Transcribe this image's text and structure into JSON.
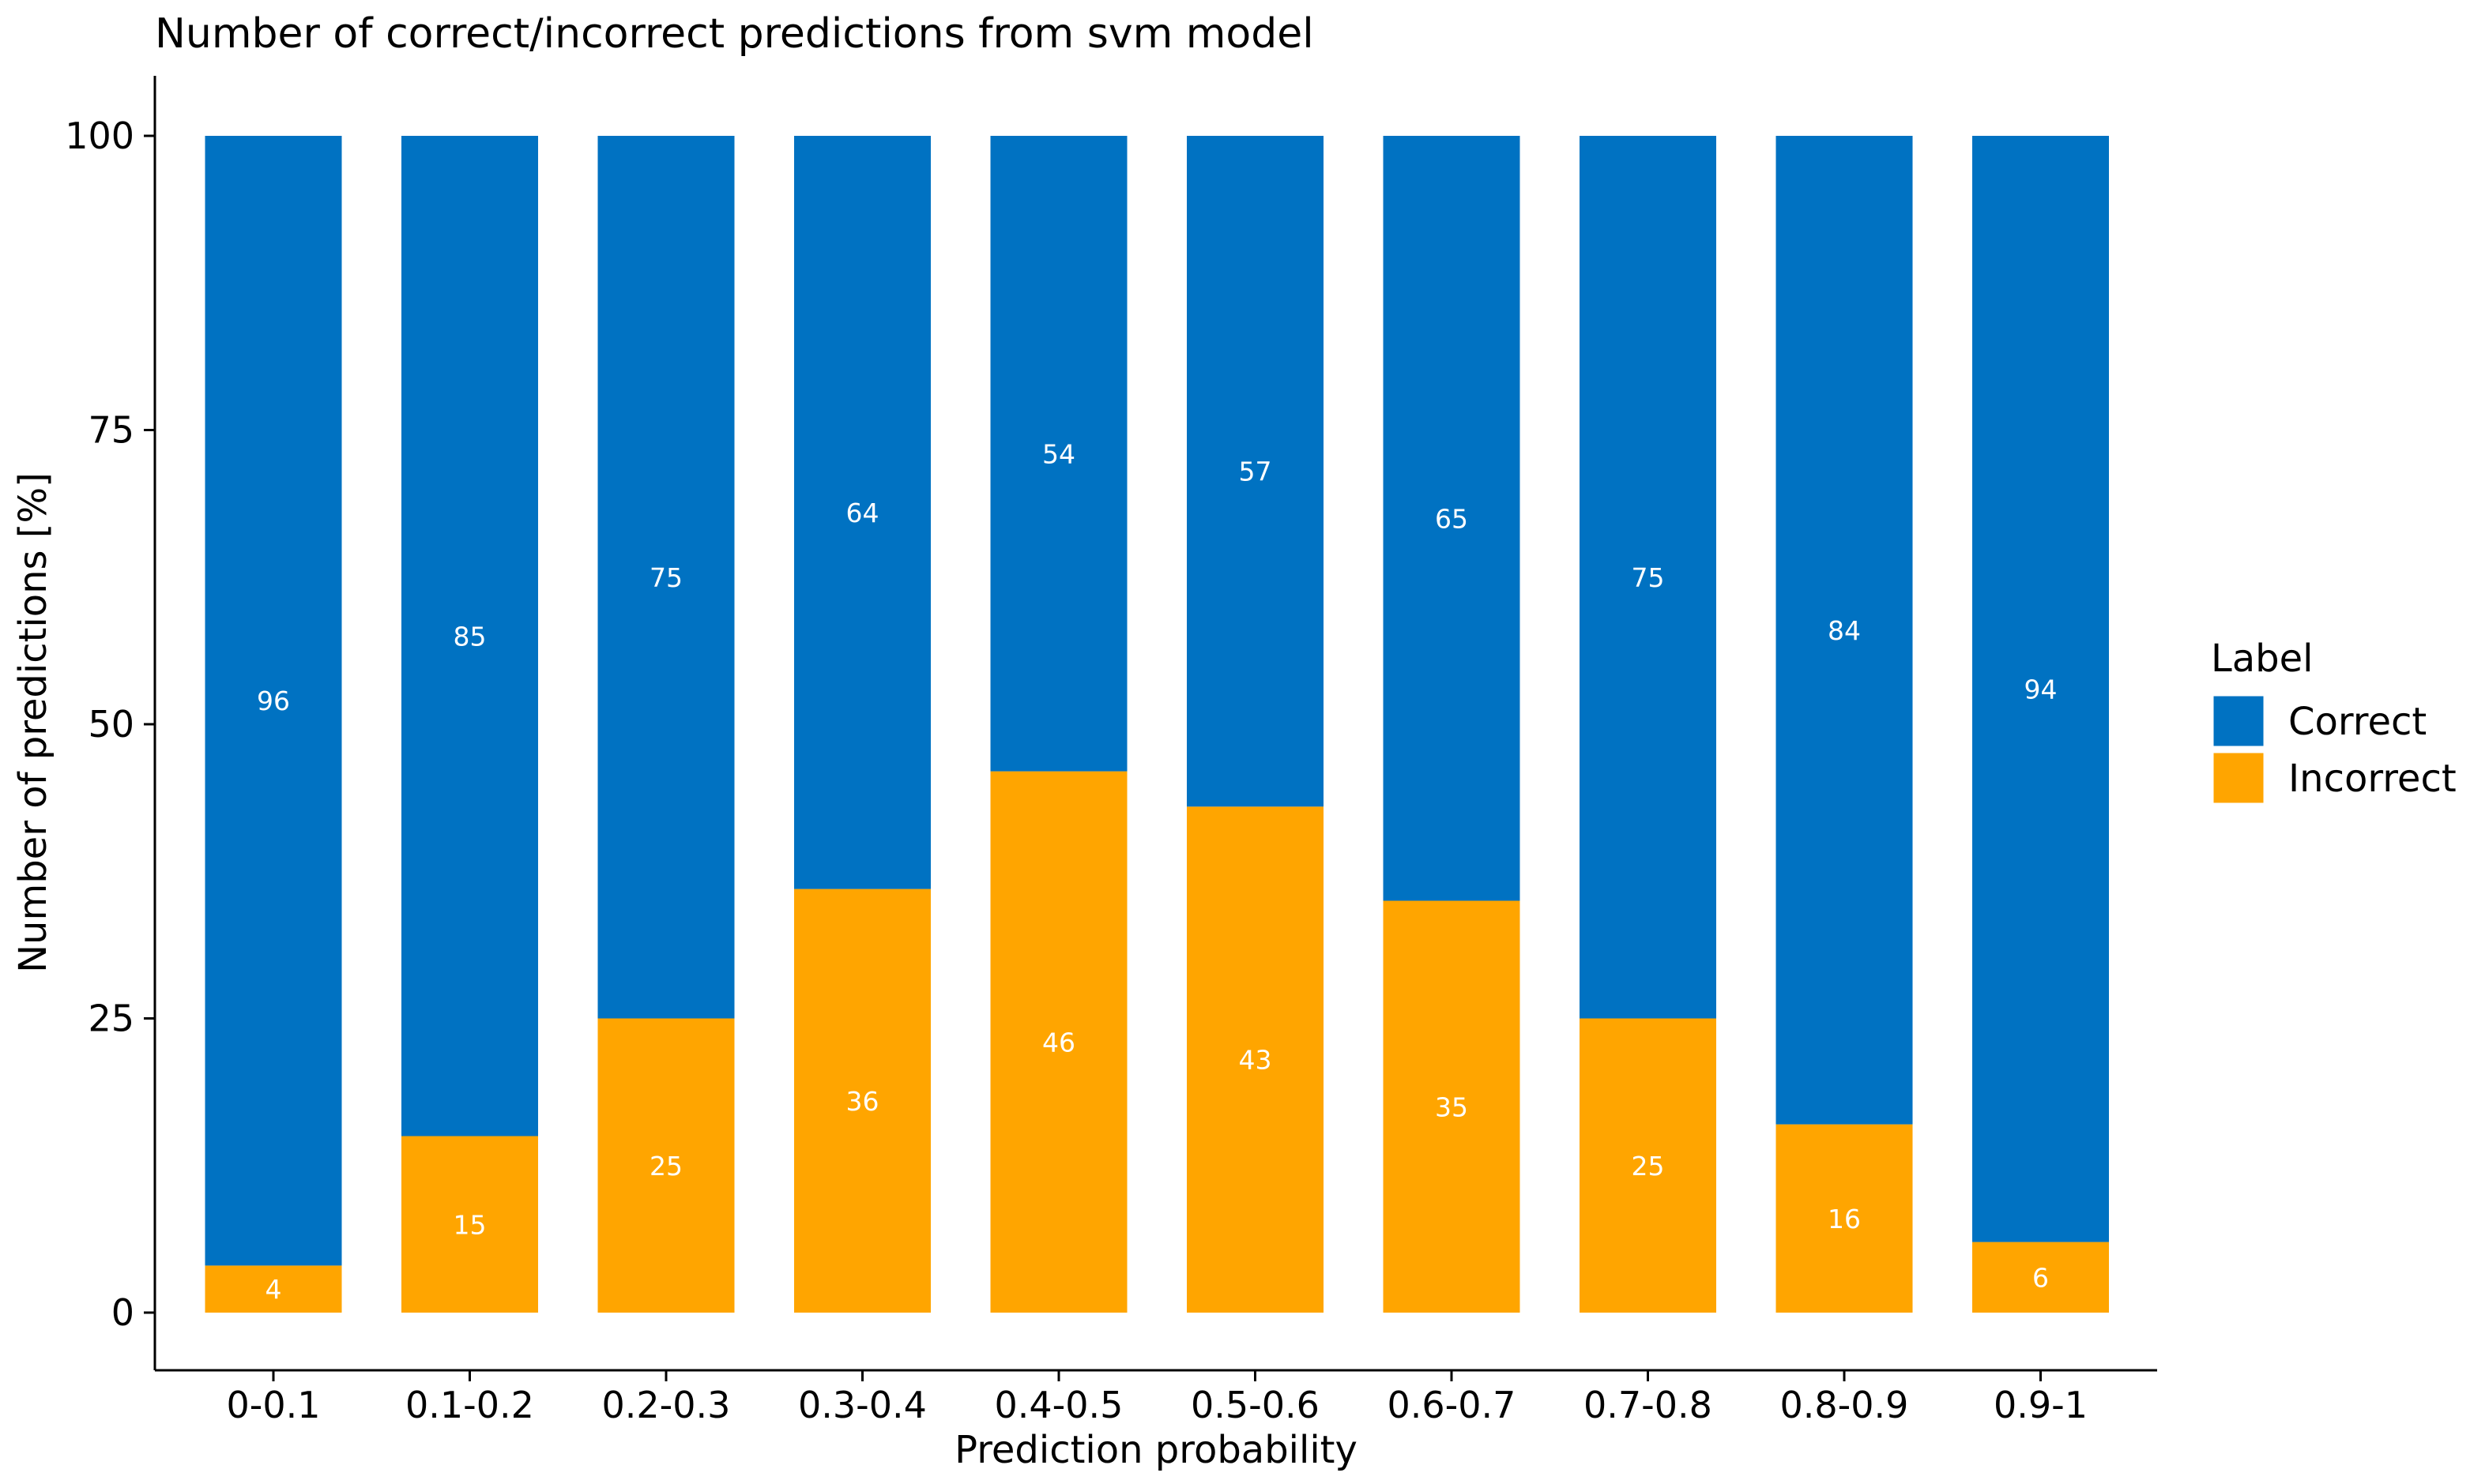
{
  "chart_data": {
    "type": "bar",
    "stacked": true,
    "title": "Number of correct/incorrect predictions from svm model",
    "xlabel": "Prediction probability",
    "ylabel": "Number of predictions [%]",
    "ylim": [
      0,
      100
    ],
    "yticks": [
      0,
      25,
      50,
      75,
      100
    ],
    "grid": false,
    "legend": {
      "title": "Label",
      "position": "right"
    },
    "categories": [
      "0-0.1",
      "0.1-0.2",
      "0.2-0.3",
      "0.3-0.4",
      "0.4-0.5",
      "0.5-0.6",
      "0.6-0.7",
      "0.7-0.8",
      "0.8-0.9",
      "0.9-1"
    ],
    "series": [
      {
        "name": "Correct",
        "color": "#0072C2",
        "values": [
          96,
          85,
          75,
          64,
          54,
          57,
          65,
          75,
          84,
          94
        ]
      },
      {
        "name": "Incorrect",
        "color": "#FFA500",
        "values": [
          4,
          15,
          25,
          36,
          46,
          43,
          35,
          25,
          16,
          6
        ]
      }
    ]
  }
}
